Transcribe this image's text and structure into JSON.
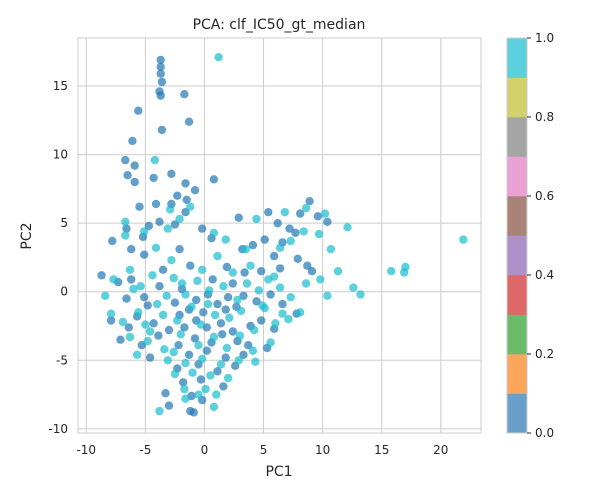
{
  "chart_data": {
    "type": "scatter",
    "title": "PCA: clf_IC50_gt_median",
    "xlabel": "PC1",
    "ylabel": "PC2",
    "xlim": [
      -10.7,
      23.4
    ],
    "ylim": [
      -10.3,
      18.5
    ],
    "xticks": [
      -10,
      -5,
      0,
      5,
      10,
      15,
      20
    ],
    "yticks": [
      -10,
      -5,
      0,
      5,
      10,
      15
    ],
    "grid": true,
    "colormap": "tab10",
    "colorbar": {
      "range": [
        0.0,
        1.0
      ],
      "ticks": [
        0.0,
        0.2,
        0.4,
        0.6,
        0.8,
        1.0
      ],
      "tick_labels": [
        "0.0",
        "0.2",
        "0.4",
        "0.6",
        "0.8",
        "1.0"
      ],
      "colors": [
        "#6a9fc9",
        "#fca55d",
        "#6bbb6b",
        "#de6767",
        "#ad92c9",
        "#aa8378",
        "#e8a1d2",
        "#a5a5a5",
        "#d2d16b",
        "#5cd0dc"
      ]
    },
    "class_colors": {
      "0": "#1f77b4",
      "1": "#17becf"
    },
    "point_alpha": 0.7,
    "series": [
      {
        "class": 0,
        "points": [
          [
            -3.7,
            16.9
          ],
          [
            -3.7,
            16.4
          ],
          [
            -3.7,
            15.9
          ],
          [
            -3.6,
            15.3
          ],
          [
            -3.8,
            14.6
          ],
          [
            -3.7,
            14.3
          ],
          [
            -1.7,
            14.4
          ],
          [
            -3.6,
            11.8
          ],
          [
            -5.6,
            13.2
          ],
          [
            -1.3,
            12.4
          ],
          [
            -6.1,
            11.0
          ],
          [
            -6.7,
            9.6
          ],
          [
            -5.9,
            9.2
          ],
          [
            -6.5,
            8.5
          ],
          [
            -5.9,
            8.0
          ],
          [
            -4.3,
            8.3
          ],
          [
            -2.8,
            8.6
          ],
          [
            -1.6,
            7.9
          ],
          [
            -2.3,
            7.0
          ],
          [
            -1.5,
            6.7
          ],
          [
            0.8,
            8.2
          ],
          [
            -0.8,
            7.4
          ],
          [
            -2.8,
            6.4
          ],
          [
            -4.1,
            6.4
          ],
          [
            -5.5,
            6.2
          ],
          [
            -1.6,
            5.8
          ],
          [
            -2.5,
            4.9
          ],
          [
            -3.8,
            5.1
          ],
          [
            -4.7,
            4.8
          ],
          [
            -5.2,
            4.0
          ],
          [
            -6.6,
            4.6
          ],
          [
            -7.8,
            3.7
          ],
          [
            -6.2,
            3.1
          ],
          [
            -5.1,
            2.7
          ],
          [
            -2.1,
            3.1
          ],
          [
            -0.2,
            4.6
          ],
          [
            0.6,
            3.9
          ],
          [
            2.9,
            5.4
          ],
          [
            5.4,
            5.8
          ],
          [
            6.2,
            5.0
          ],
          [
            7.2,
            4.6
          ],
          [
            8.1,
            5.7
          ],
          [
            8.9,
            6.6
          ],
          [
            9.6,
            5.5
          ],
          [
            10.4,
            5.1
          ],
          [
            7.7,
            4.3
          ],
          [
            6.6,
            3.6
          ],
          [
            5.1,
            3.8
          ],
          [
            4.1,
            3.4
          ],
          [
            3.2,
            3.1
          ],
          [
            5.9,
            2.6
          ],
          [
            7.9,
            2.4
          ],
          [
            8.7,
            1.9
          ],
          [
            9.1,
            1.5
          ],
          [
            6.4,
            1.7
          ],
          [
            4.8,
            1.5
          ],
          [
            3.4,
            1.4
          ],
          [
            1.9,
            1.8
          ],
          [
            -8.7,
            1.2
          ],
          [
            -7.3,
            0.7
          ],
          [
            -6.6,
            -0.5
          ],
          [
            -5.1,
            -0.4
          ],
          [
            -3.8,
            0.4
          ],
          [
            -2.5,
            -0.8
          ],
          [
            -1.9,
            0.2
          ],
          [
            -0.7,
            -0.6
          ],
          [
            -1.3,
            -1.3
          ],
          [
            0.3,
            -0.2
          ],
          [
            1.1,
            -0.9
          ],
          [
            2.0,
            -0.4
          ],
          [
            2.7,
            -1.1
          ],
          [
            3.3,
            -0.3
          ],
          [
            4.4,
            -0.7
          ],
          [
            5.6,
            -0.2
          ],
          [
            6.6,
            -0.9
          ],
          [
            7.8,
            -1.6
          ],
          [
            -7.9,
            -2.1
          ],
          [
            -6.4,
            -2.6
          ],
          [
            -5.7,
            -1.8
          ],
          [
            -4.3,
            -2.3
          ],
          [
            -3.0,
            -2.8
          ],
          [
            -1.7,
            -2.6
          ],
          [
            -0.7,
            -2.1
          ],
          [
            0.2,
            -2.6
          ],
          [
            1.4,
            -2.3
          ],
          [
            2.4,
            -2.9
          ],
          [
            3.9,
            -2.5
          ],
          [
            4.8,
            -2.1
          ],
          [
            5.9,
            -2.7
          ],
          [
            -7.1,
            -3.5
          ],
          [
            -5.3,
            -3.9
          ],
          [
            -3.9,
            -3.2
          ],
          [
            -2.2,
            -3.9
          ],
          [
            -0.8,
            -3.4
          ],
          [
            0.6,
            -3.7
          ],
          [
            1.5,
            -3.1
          ],
          [
            2.8,
            -3.6
          ],
          [
            3.7,
            -3.9
          ],
          [
            5.3,
            -4.1
          ],
          [
            -4.6,
            -4.8
          ],
          [
            -1.3,
            -4.6
          ],
          [
            0.2,
            -4.3
          ],
          [
            1.8,
            -4.8
          ],
          [
            3.3,
            -4.6
          ],
          [
            -2.3,
            -5.6
          ],
          [
            -0.5,
            -5.3
          ],
          [
            1.1,
            -5.8
          ],
          [
            2.6,
            -5.4
          ],
          [
            -1.8,
            -6.6
          ],
          [
            -0.3,
            -6.4
          ],
          [
            1.6,
            -6.9
          ],
          [
            -3.3,
            -7.4
          ],
          [
            -1.1,
            -7.6
          ],
          [
            -0.2,
            -7.9
          ],
          [
            -3.0,
            -8.3
          ],
          [
            -0.9,
            -8.8
          ],
          [
            -1.2,
            -8.7
          ],
          [
            -2.1,
            -1.7
          ],
          [
            -0.1,
            -1.5
          ],
          [
            1.8,
            -1.3
          ],
          [
            -3.5,
            1.6
          ],
          [
            -1.2,
            1.9
          ],
          [
            0.7,
            0.9
          ],
          [
            2.4,
            0.6
          ],
          [
            -4.8,
            -1.0
          ],
          [
            -6.2,
            0.9
          ]
        ]
      },
      {
        "class": 1,
        "points": [
          [
            1.2,
            17.1
          ],
          [
            -4.2,
            9.6
          ],
          [
            -2.9,
            6.0
          ],
          [
            -1.2,
            6.2
          ],
          [
            -2.1,
            5.3
          ],
          [
            -3.1,
            4.6
          ],
          [
            -6.7,
            5.1
          ],
          [
            -5.1,
            4.4
          ],
          [
            -6.7,
            4.1
          ],
          [
            -4.1,
            3.2
          ],
          [
            0.8,
            4.3
          ],
          [
            1.8,
            3.8
          ],
          [
            3.5,
            3.1
          ],
          [
            6.4,
            3.2
          ],
          [
            7.3,
            3.7
          ],
          [
            8.4,
            4.4
          ],
          [
            9.7,
            4.2
          ],
          [
            10.2,
            5.7
          ],
          [
            8.6,
            6.1
          ],
          [
            6.8,
            5.8
          ],
          [
            4.4,
            5.3
          ],
          [
            12.1,
            4.7
          ],
          [
            10.7,
            3.1
          ],
          [
            11.3,
            1.5
          ],
          [
            12.6,
            0.3
          ],
          [
            13.2,
            -0.2
          ],
          [
            15.8,
            1.5
          ],
          [
            16.9,
            1.4
          ],
          [
            17.0,
            1.8
          ],
          [
            21.9,
            3.8
          ],
          [
            -8.4,
            -0.3
          ],
          [
            -7.7,
            0.9
          ],
          [
            -6.3,
            1.6
          ],
          [
            -5.4,
            0.4
          ],
          [
            -4.4,
            1.2
          ],
          [
            -3.2,
            -0.3
          ],
          [
            -2.6,
            1.0
          ],
          [
            -1.6,
            -0.2
          ],
          [
            -0.6,
            0.8
          ],
          [
            0.4,
            0.1
          ],
          [
            1.6,
            0.4
          ],
          [
            2.4,
            1.4
          ],
          [
            3.6,
            0.6
          ],
          [
            4.6,
            0.1
          ],
          [
            5.4,
            0.9
          ],
          [
            6.4,
            0.3
          ],
          [
            7.3,
            -0.4
          ],
          [
            8.6,
            0.6
          ],
          [
            9.8,
            0.9
          ],
          [
            10.4,
            -0.3
          ],
          [
            -7.9,
            -1.6
          ],
          [
            -6.9,
            -2.2
          ],
          [
            -5.6,
            -1.5
          ],
          [
            -4.6,
            -2.9
          ],
          [
            -3.5,
            -1.7
          ],
          [
            -2.3,
            -2.1
          ],
          [
            -1.1,
            -1.1
          ],
          [
            -0.3,
            -2.4
          ],
          [
            0.9,
            -1.7
          ],
          [
            2.1,
            -1.9
          ],
          [
            3.1,
            -1.4
          ],
          [
            4.2,
            -2.8
          ],
          [
            5.1,
            -1.2
          ],
          [
            6.0,
            -2.3
          ],
          [
            7.1,
            -2.0
          ],
          [
            8.1,
            -1.5
          ],
          [
            -6.3,
            -3.3
          ],
          [
            -4.8,
            -3.6
          ],
          [
            -3.4,
            -4.2
          ],
          [
            -2.0,
            -3.1
          ],
          [
            -0.5,
            -3.9
          ],
          [
            0.8,
            -3.3
          ],
          [
            1.9,
            -4.1
          ],
          [
            3.0,
            -3.2
          ],
          [
            4.1,
            -4.3
          ],
          [
            5.6,
            -3.7
          ],
          [
            -5.7,
            -4.6
          ],
          [
            -3.1,
            -5.0
          ],
          [
            -1.6,
            -5.2
          ],
          [
            -0.2,
            -4.9
          ],
          [
            1.4,
            -5.3
          ],
          [
            2.9,
            -5.0
          ],
          [
            4.3,
            -5.1
          ],
          [
            -2.5,
            -6.0
          ],
          [
            -1.0,
            -5.9
          ],
          [
            0.5,
            -6.1
          ],
          [
            2.0,
            -6.3
          ],
          [
            -1.7,
            -7.1
          ],
          [
            0.1,
            -7.1
          ],
          [
            1.0,
            -7.5
          ],
          [
            -3.8,
            -8.7
          ],
          [
            0.8,
            -8.4
          ],
          [
            -1.6,
            -7.8
          ],
          [
            -0.5,
            -7.5
          ],
          [
            -2.6,
            -4.4
          ],
          [
            0.3,
            -0.9
          ],
          [
            -1.9,
            0.6
          ],
          [
            -4.0,
            -0.9
          ],
          [
            2.8,
            -0.6
          ],
          [
            4.9,
            -1.0
          ],
          [
            6.6,
            -1.6
          ],
          [
            -0.2,
            1.6
          ],
          [
            1.1,
            2.6
          ],
          [
            -2.8,
            2.3
          ],
          [
            3.9,
            1.9
          ],
          [
            5.9,
            1.1
          ],
          [
            -5.0,
            -2.4
          ],
          [
            -6.0,
            0.2
          ]
        ]
      }
    ]
  }
}
